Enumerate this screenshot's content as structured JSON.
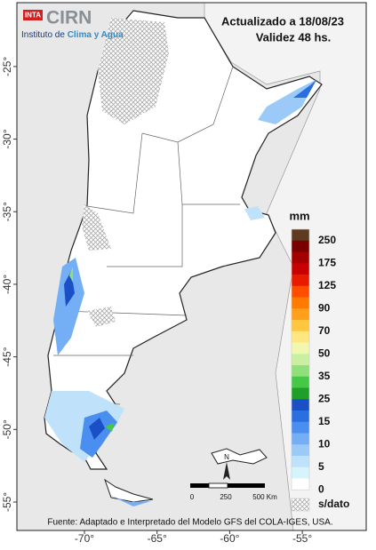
{
  "header": {
    "logo_badge": "INTA",
    "logo": "CIRN",
    "institute_prefix": "Instituto de",
    "institute_highlight": "Clima y Agua",
    "updated": "Actualizado a 18/08/23",
    "validity": "Validez 48 hs."
  },
  "map": {
    "xlim": [
      -74.65,
      -50.6
    ],
    "ylim": [
      -56.96,
      -20.6
    ],
    "xticks": [
      {
        "value": -70,
        "label": "-70°"
      },
      {
        "value": -65,
        "label": "-65°"
      },
      {
        "value": -60,
        "label": "-60°"
      },
      {
        "value": -55,
        "label": "-55°"
      }
    ],
    "yticks": [
      {
        "value": -25,
        "label": "-25°"
      },
      {
        "value": -30,
        "label": "-30°"
      },
      {
        "value": -35,
        "label": "-35°"
      },
      {
        "value": -40,
        "label": "-40°"
      },
      {
        "value": -45,
        "label": "-45°"
      },
      {
        "value": -50,
        "label": "-50°"
      },
      {
        "value": -55,
        "label": "-55°"
      }
    ]
  },
  "legend": {
    "unit": "mm",
    "colors": [
      "#5e3b1f",
      "#7a0000",
      "#a30000",
      "#c80000",
      "#e81a00",
      "#ff4d00",
      "#ff7a00",
      "#ff9f1a",
      "#ffc640",
      "#ffe680",
      "#f2f7b0",
      "#c8f0a0",
      "#8fe07a",
      "#45c845",
      "#1f9e2a",
      "#1a4fc8",
      "#2a6fe0",
      "#4a8ef0",
      "#74aef5",
      "#9ccaf8",
      "#bfe2fa",
      "#d6f4fb",
      "#ffffff"
    ],
    "labels": [
      "250",
      "175",
      "125",
      "90",
      "70",
      "50",
      "35",
      "25",
      "15",
      "10",
      "5",
      "0"
    ],
    "nodata_label": "s/dato"
  },
  "scale_bar": {
    "labels": [
      "0",
      "250",
      "500 Km"
    ],
    "north_label": "N"
  },
  "source": "Fuente: Adaptado e Interpretado del Modelo GFS del COLA-IGES, USA."
}
